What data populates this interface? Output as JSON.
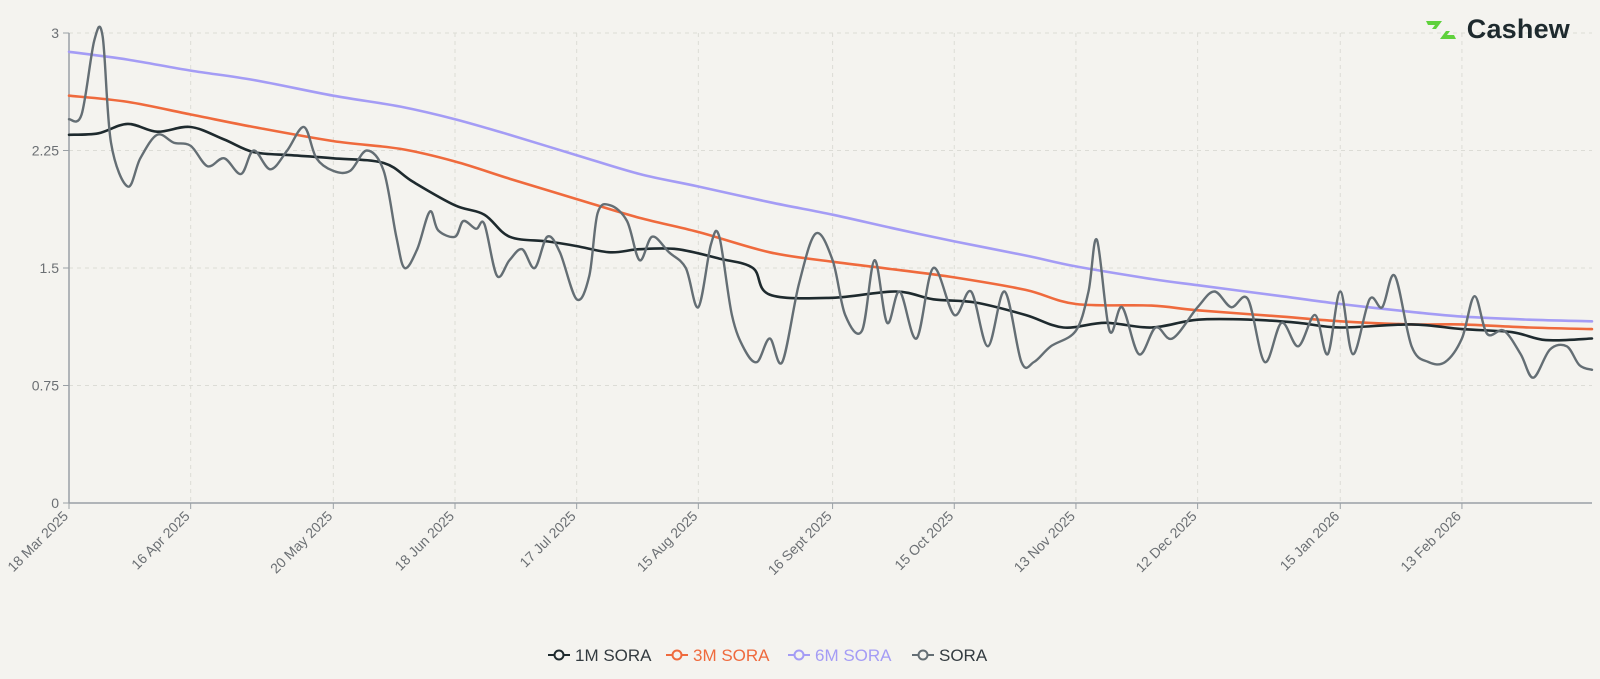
{
  "brand": {
    "name": "Cashew",
    "color": "#5fd13c"
  },
  "chart_data": {
    "type": "line",
    "title": "",
    "xlabel": "",
    "ylabel": "",
    "ylim": [
      0,
      3
    ],
    "yticks": [
      0,
      0.75,
      1.5,
      2.25,
      3
    ],
    "ytick_labels": [
      "0",
      "0.75",
      "1.5",
      "2.25",
      "3"
    ],
    "grid": true,
    "legend_position": "bottom-center",
    "x_start_date": "2025-03-18",
    "x_end_date": "2026-03-16",
    "xticks": [
      {
        "date": "2025-03-18",
        "label": "18 Mar 2025"
      },
      {
        "date": "2025-04-16",
        "label": "16 Apr 2025"
      },
      {
        "date": "2025-05-20",
        "label": "20 May 2025"
      },
      {
        "date": "2025-06-18",
        "label": "18 Jun 2025"
      },
      {
        "date": "2025-07-17",
        "label": "17 Jul 2025"
      },
      {
        "date": "2025-08-15",
        "label": "15 Aug 2025"
      },
      {
        "date": "2025-09-16",
        "label": "16 Sept 2025"
      },
      {
        "date": "2025-10-15",
        "label": "15 Oct 2025"
      },
      {
        "date": "2025-11-13",
        "label": "13 Nov 2025"
      },
      {
        "date": "2025-12-12",
        "label": "12 Dec 2025"
      },
      {
        "date": "2026-01-15",
        "label": "15 Jan 2026"
      },
      {
        "date": "2026-02-13",
        "label": "13 Feb 2026"
      }
    ],
    "series": [
      {
        "name": "6M SORA",
        "color": "#a49cf5",
        "width": 2.6,
        "points": [
          [
            "2025-03-18",
            2.88
          ],
          [
            "2025-04-01",
            2.83
          ],
          [
            "2025-04-16",
            2.76
          ],
          [
            "2025-05-01",
            2.7
          ],
          [
            "2025-05-20",
            2.6
          ],
          [
            "2025-06-05",
            2.53
          ],
          [
            "2025-06-18",
            2.45
          ],
          [
            "2025-07-01",
            2.35
          ],
          [
            "2025-07-17",
            2.22
          ],
          [
            "2025-08-01",
            2.1
          ],
          [
            "2025-08-15",
            2.02
          ],
          [
            "2025-09-01",
            1.92
          ],
          [
            "2025-09-16",
            1.84
          ],
          [
            "2025-10-01",
            1.75
          ],
          [
            "2025-10-15",
            1.67
          ],
          [
            "2025-11-01",
            1.58
          ],
          [
            "2025-11-13",
            1.51
          ],
          [
            "2025-12-01",
            1.43
          ],
          [
            "2025-12-12",
            1.39
          ],
          [
            "2026-01-01",
            1.32
          ],
          [
            "2026-01-15",
            1.27
          ],
          [
            "2026-02-01",
            1.22
          ],
          [
            "2026-02-13",
            1.19
          ],
          [
            "2026-03-01",
            1.17
          ],
          [
            "2026-03-16",
            1.16
          ]
        ]
      },
      {
        "name": "3M SORA",
        "color": "#ef6a3d",
        "width": 2.6,
        "points": [
          [
            "2025-03-18",
            2.6
          ],
          [
            "2025-04-01",
            2.56
          ],
          [
            "2025-04-16",
            2.48
          ],
          [
            "2025-05-01",
            2.4
          ],
          [
            "2025-05-20",
            2.31
          ],
          [
            "2025-06-05",
            2.26
          ],
          [
            "2025-06-18",
            2.18
          ],
          [
            "2025-07-01",
            2.07
          ],
          [
            "2025-07-17",
            1.94
          ],
          [
            "2025-08-01",
            1.82
          ],
          [
            "2025-08-15",
            1.73
          ],
          [
            "2025-09-01",
            1.6
          ],
          [
            "2025-09-16",
            1.54
          ],
          [
            "2025-10-01",
            1.49
          ],
          [
            "2025-10-15",
            1.44
          ],
          [
            "2025-11-01",
            1.36
          ],
          [
            "2025-11-13",
            1.27
          ],
          [
            "2025-12-01",
            1.26
          ],
          [
            "2025-12-12",
            1.23
          ],
          [
            "2026-01-01",
            1.19
          ],
          [
            "2026-01-15",
            1.16
          ],
          [
            "2026-02-01",
            1.14
          ],
          [
            "2026-02-13",
            1.14
          ],
          [
            "2026-03-01",
            1.12
          ],
          [
            "2026-03-16",
            1.11
          ]
        ]
      },
      {
        "name": "1M SORA",
        "color": "#1e2a2e",
        "width": 2.6,
        "points": [
          [
            "2025-03-18",
            2.35
          ],
          [
            "2025-03-25",
            2.36
          ],
          [
            "2025-04-01",
            2.42
          ],
          [
            "2025-04-08",
            2.37
          ],
          [
            "2025-04-16",
            2.4
          ],
          [
            "2025-04-24",
            2.32
          ],
          [
            "2025-05-01",
            2.24
          ],
          [
            "2025-05-10",
            2.22
          ],
          [
            "2025-05-20",
            2.2
          ],
          [
            "2025-06-01",
            2.17
          ],
          [
            "2025-06-08",
            2.05
          ],
          [
            "2025-06-18",
            1.9
          ],
          [
            "2025-06-25",
            1.84
          ],
          [
            "2025-07-01",
            1.7
          ],
          [
            "2025-07-10",
            1.67
          ],
          [
            "2025-07-17",
            1.64
          ],
          [
            "2025-07-25",
            1.6
          ],
          [
            "2025-08-01",
            1.62
          ],
          [
            "2025-08-10",
            1.62
          ],
          [
            "2025-08-20",
            1.56
          ],
          [
            "2025-08-28",
            1.5
          ],
          [
            "2025-09-01",
            1.33
          ],
          [
            "2025-09-16",
            1.31
          ],
          [
            "2025-10-01",
            1.35
          ],
          [
            "2025-10-10",
            1.3
          ],
          [
            "2025-10-20",
            1.28
          ],
          [
            "2025-11-01",
            1.2
          ],
          [
            "2025-11-10",
            1.12
          ],
          [
            "2025-11-20",
            1.15
          ],
          [
            "2025-12-01",
            1.12
          ],
          [
            "2025-12-12",
            1.17
          ],
          [
            "2025-12-25",
            1.17
          ],
          [
            "2026-01-05",
            1.15
          ],
          [
            "2026-01-15",
            1.12
          ],
          [
            "2026-02-01",
            1.14
          ],
          [
            "2026-02-13",
            1.11
          ],
          [
            "2026-02-25",
            1.09
          ],
          [
            "2026-03-05",
            1.04
          ],
          [
            "2026-03-16",
            1.05
          ]
        ]
      },
      {
        "name": "SORA",
        "color": "#646e74",
        "width": 2.4,
        "points": [
          [
            "2025-03-18",
            2.45
          ],
          [
            "2025-03-21",
            2.48
          ],
          [
            "2025-03-24",
            2.95
          ],
          [
            "2025-03-26",
            2.98
          ],
          [
            "2025-03-28",
            2.3
          ],
          [
            "2025-04-01",
            2.02
          ],
          [
            "2025-04-04",
            2.2
          ],
          [
            "2025-04-08",
            2.35
          ],
          [
            "2025-04-12",
            2.3
          ],
          [
            "2025-04-16",
            2.28
          ],
          [
            "2025-04-20",
            2.15
          ],
          [
            "2025-04-24",
            2.2
          ],
          [
            "2025-04-28",
            2.1
          ],
          [
            "2025-05-01",
            2.25
          ],
          [
            "2025-05-05",
            2.13
          ],
          [
            "2025-05-09",
            2.25
          ],
          [
            "2025-05-13",
            2.4
          ],
          [
            "2025-05-16",
            2.2
          ],
          [
            "2025-05-20",
            2.12
          ],
          [
            "2025-05-24",
            2.12
          ],
          [
            "2025-05-28",
            2.25
          ],
          [
            "2025-06-01",
            2.12
          ],
          [
            "2025-06-04",
            1.7
          ],
          [
            "2025-06-06",
            1.5
          ],
          [
            "2025-06-09",
            1.62
          ],
          [
            "2025-06-12",
            1.86
          ],
          [
            "2025-06-14",
            1.74
          ],
          [
            "2025-06-18",
            1.7
          ],
          [
            "2025-06-20",
            1.8
          ],
          [
            "2025-06-23",
            1.75
          ],
          [
            "2025-06-25",
            1.78
          ],
          [
            "2025-06-28",
            1.45
          ],
          [
            "2025-07-01",
            1.55
          ],
          [
            "2025-07-04",
            1.62
          ],
          [
            "2025-07-07",
            1.5
          ],
          [
            "2025-07-10",
            1.7
          ],
          [
            "2025-07-13",
            1.6
          ],
          [
            "2025-07-17",
            1.3
          ],
          [
            "2025-07-20",
            1.45
          ],
          [
            "2025-07-22",
            1.85
          ],
          [
            "2025-07-25",
            1.9
          ],
          [
            "2025-07-29",
            1.8
          ],
          [
            "2025-08-01",
            1.55
          ],
          [
            "2025-08-04",
            1.7
          ],
          [
            "2025-08-08",
            1.6
          ],
          [
            "2025-08-12",
            1.5
          ],
          [
            "2025-08-15",
            1.25
          ],
          [
            "2025-08-18",
            1.65
          ],
          [
            "2025-08-20",
            1.7
          ],
          [
            "2025-08-23",
            1.2
          ],
          [
            "2025-08-26",
            0.98
          ],
          [
            "2025-08-29",
            0.9
          ],
          [
            "2025-09-01",
            1.05
          ],
          [
            "2025-09-04",
            0.9
          ],
          [
            "2025-09-08",
            1.4
          ],
          [
            "2025-09-12",
            1.72
          ],
          [
            "2025-09-16",
            1.55
          ],
          [
            "2025-09-19",
            1.2
          ],
          [
            "2025-09-23",
            1.1
          ],
          [
            "2025-09-26",
            1.55
          ],
          [
            "2025-09-29",
            1.15
          ],
          [
            "2025-10-02",
            1.35
          ],
          [
            "2025-10-06",
            1.05
          ],
          [
            "2025-10-10",
            1.5
          ],
          [
            "2025-10-15",
            1.2
          ],
          [
            "2025-10-19",
            1.35
          ],
          [
            "2025-10-23",
            1.0
          ],
          [
            "2025-10-27",
            1.35
          ],
          [
            "2025-10-31",
            0.9
          ],
          [
            "2025-11-03",
            0.9
          ],
          [
            "2025-11-07",
            1.0
          ],
          [
            "2025-11-13",
            1.1
          ],
          [
            "2025-11-16",
            1.35
          ],
          [
            "2025-11-18",
            1.68
          ],
          [
            "2025-11-21",
            1.1
          ],
          [
            "2025-11-24",
            1.25
          ],
          [
            "2025-11-28",
            0.95
          ],
          [
            "2025-12-02",
            1.12
          ],
          [
            "2025-12-06",
            1.05
          ],
          [
            "2025-12-12",
            1.25
          ],
          [
            "2025-12-16",
            1.35
          ],
          [
            "2025-12-20",
            1.25
          ],
          [
            "2025-12-24",
            1.3
          ],
          [
            "2025-12-28",
            0.9
          ],
          [
            "2026-01-01",
            1.15
          ],
          [
            "2026-01-05",
            1.0
          ],
          [
            "2026-01-09",
            1.2
          ],
          [
            "2026-01-12",
            0.95
          ],
          [
            "2026-01-15",
            1.35
          ],
          [
            "2026-01-18",
            0.95
          ],
          [
            "2026-01-22",
            1.3
          ],
          [
            "2026-01-25",
            1.25
          ],
          [
            "2026-01-28",
            1.45
          ],
          [
            "2026-02-01",
            1.0
          ],
          [
            "2026-02-05",
            0.9
          ],
          [
            "2026-02-09",
            0.9
          ],
          [
            "2026-02-13",
            1.05
          ],
          [
            "2026-02-16",
            1.32
          ],
          [
            "2026-02-19",
            1.08
          ],
          [
            "2026-02-23",
            1.1
          ],
          [
            "2026-02-27",
            0.95
          ],
          [
            "2026-03-02",
            0.8
          ],
          [
            "2026-03-06",
            0.98
          ],
          [
            "2026-03-10",
            1.0
          ],
          [
            "2026-03-13",
            0.88
          ],
          [
            "2026-03-16",
            0.85
          ]
        ]
      }
    ],
    "legend_order": [
      "1M SORA",
      "3M SORA",
      "6M SORA",
      "SORA"
    ]
  }
}
